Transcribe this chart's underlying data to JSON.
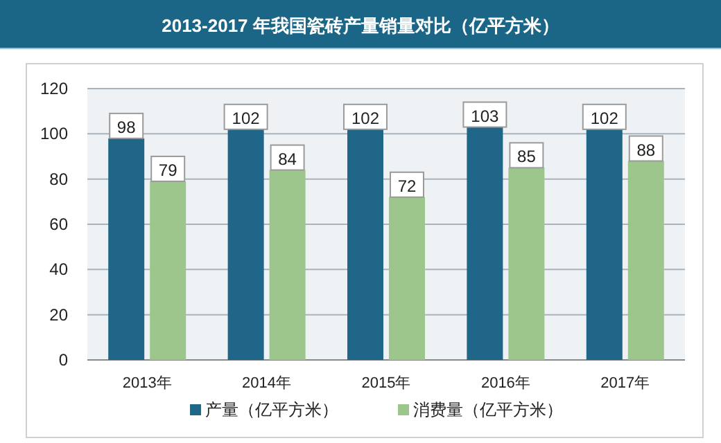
{
  "chart_data": {
    "type": "bar",
    "title": "2013-2017 年我国瓷砖产量销量对比（亿平方米）",
    "categories": [
      "2013年",
      "2014年",
      "2015年",
      "2016年",
      "2017年"
    ],
    "series": [
      {
        "name": "产量（亿平方米）",
        "color": "#1f6688",
        "values": [
          98,
          102,
          102,
          103,
          102
        ]
      },
      {
        "name": "消费量（亿平方米）",
        "color": "#9dc68c",
        "values": [
          79,
          84,
          72,
          85,
          88
        ]
      }
    ],
    "ylim": [
      0,
      120
    ],
    "yticks": [
      0,
      20,
      40,
      60,
      80,
      100,
      120
    ],
    "grid": "y",
    "legend": "bottom",
    "data_labels": true
  }
}
